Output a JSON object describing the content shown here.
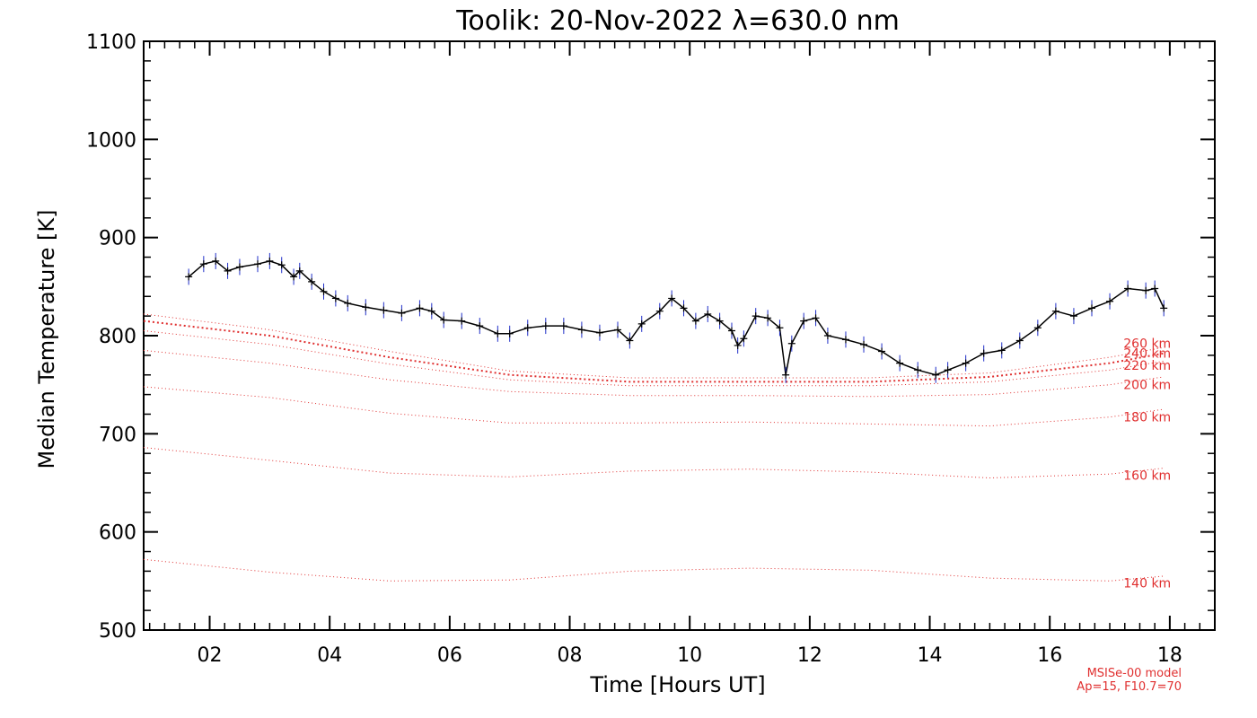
{
  "chart_data": {
    "type": "line",
    "title": "Toolik: 20-Nov-2022 λ=630.0 nm",
    "xlabel": "Time [Hours UT]",
    "ylabel": "Median Temperature [K]",
    "xlim": [
      0.9,
      18.75
    ],
    "ylim": [
      500,
      1100
    ],
    "x_ticks": [
      2,
      4,
      6,
      8,
      10,
      12,
      14,
      16,
      18
    ],
    "x_tick_labels": [
      "02",
      "04",
      "06",
      "08",
      "10",
      "12",
      "14",
      "16",
      "18"
    ],
    "y_ticks": [
      500,
      600,
      700,
      800,
      900,
      1000,
      1100
    ],
    "y_tick_labels": [
      "500",
      "600",
      "700",
      "800",
      "900",
      "1000",
      "1100"
    ],
    "colors": {
      "measurement": "#000000",
      "error_bars": "#1f2ec8",
      "model": "#e03030",
      "axes": "#000000"
    },
    "series": [
      {
        "kind": "measurement",
        "x": [
          1.65,
          1.9,
          2.1,
          2.3,
          2.5,
          2.8,
          3.0,
          3.2,
          3.4,
          3.5,
          3.7,
          3.9,
          4.1,
          4.3,
          4.6,
          4.9,
          5.2,
          5.5,
          5.7,
          5.9,
          6.2,
          6.5,
          6.8,
          7.0,
          7.3,
          7.6,
          7.9,
          8.2,
          8.5,
          8.8,
          9.0,
          9.2,
          9.5,
          9.7,
          9.9,
          10.1,
          10.3,
          10.5,
          10.7,
          10.8,
          10.9,
          11.1,
          11.3,
          11.5,
          11.6,
          11.7,
          11.9,
          12.1,
          12.3,
          12.6,
          12.9,
          13.2,
          13.5,
          13.8,
          14.1,
          14.3,
          14.6,
          14.9,
          15.2,
          15.5,
          15.8,
          16.1,
          16.4,
          16.7,
          17.0,
          17.3,
          17.6,
          17.75,
          17.9
        ],
        "y": [
          860,
          873,
          876,
          866,
          870,
          873,
          876,
          872,
          860,
          866,
          855,
          845,
          838,
          833,
          829,
          826,
          823,
          828,
          825,
          816,
          815,
          810,
          802,
          802,
          808,
          810,
          810,
          806,
          803,
          806,
          795,
          812,
          825,
          838,
          828,
          815,
          822,
          815,
          805,
          790,
          797,
          820,
          818,
          808,
          760,
          792,
          815,
          818,
          800,
          796,
          791,
          784,
          772,
          765,
          760,
          765,
          772,
          782,
          785,
          795,
          808,
          825,
          820,
          828,
          835,
          848,
          846,
          848,
          828
        ]
      }
    ],
    "model_curves": [
      {
        "altitude": "260 km",
        "x": [
          0.9,
          3,
          5,
          7,
          9,
          11,
          13,
          15,
          17,
          17.9
        ],
        "y": [
          822,
          806,
          784,
          764,
          757,
          757,
          757,
          762,
          778,
          788
        ]
      },
      {
        "altitude": "240 km",
        "x": [
          0.9,
          3,
          5,
          7,
          9,
          11,
          13,
          15,
          17,
          17.9
        ],
        "y": [
          815,
          800,
          778,
          760,
          753,
          753,
          753,
          758,
          772,
          782
        ]
      },
      {
        "altitude": "220 km",
        "x": [
          0.9,
          3,
          5,
          7,
          9,
          11,
          13,
          15,
          17,
          17.9
        ],
        "y": [
          805,
          791,
          771,
          755,
          749,
          749,
          749,
          753,
          765,
          774
        ]
      },
      {
        "altitude": "200 km",
        "x": [
          0.9,
          3,
          5,
          7,
          9,
          11,
          13,
          15,
          17,
          17.9
        ],
        "y": [
          785,
          772,
          755,
          743,
          739,
          739,
          738,
          740,
          750,
          758
        ]
      },
      {
        "altitude": "180 km",
        "x": [
          0.9,
          3,
          5,
          7,
          9,
          11,
          13,
          15,
          17,
          17.9
        ],
        "y": [
          748,
          737,
          721,
          711,
          711,
          712,
          710,
          708,
          717,
          725
        ]
      },
      {
        "altitude": "160 km",
        "x": [
          0.9,
          3,
          5,
          7,
          9,
          11,
          13,
          15,
          17,
          17.9
        ],
        "y": [
          686,
          673,
          660,
          656,
          662,
          664,
          661,
          655,
          659,
          665
        ]
      },
      {
        "altitude": "140 km",
        "x": [
          0.9,
          3,
          5,
          7,
          9,
          11,
          13,
          15,
          17,
          17.9
        ],
        "y": [
          572,
          559,
          550,
          551,
          560,
          563,
          561,
          553,
          550,
          555
        ]
      }
    ],
    "model_label_x": 17.9,
    "model_label_y": [
      792,
      782,
      770,
      750,
      717,
      658,
      548
    ],
    "model_note": [
      "MSISe-00 model",
      "Ap=15, F10.7=70"
    ],
    "grid": false
  }
}
